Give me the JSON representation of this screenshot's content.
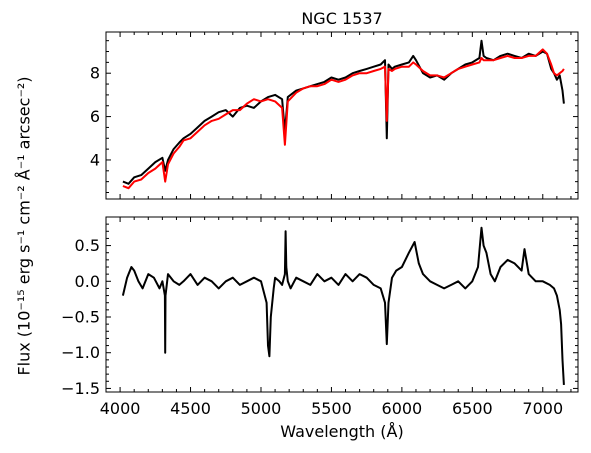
{
  "chart_data": [
    {
      "type": "line",
      "title": "NGC 1537",
      "xlabel": "",
      "ylabel": "",
      "xlim": [
        3900,
        7250
      ],
      "ylim": [
        2.2,
        9.9
      ],
      "xticks": [
        4000,
        4500,
        5000,
        5500,
        6000,
        6500,
        7000
      ],
      "yticks": [
        4,
        6,
        8
      ],
      "ytick_labels": [
        "4",
        "6",
        "8"
      ],
      "grid": false,
      "series": [
        {
          "color": "#000000",
          "x": [
            4020,
            4060,
            4100,
            4150,
            4200,
            4250,
            4300,
            4320,
            4340,
            4380,
            4420,
            4450,
            4500,
            4550,
            4600,
            4650,
            4700,
            4750,
            4800,
            4850,
            4900,
            4950,
            5000,
            5050,
            5100,
            5150,
            5170,
            5190,
            5250,
            5300,
            5350,
            5400,
            5450,
            5500,
            5550,
            5600,
            5650,
            5700,
            5750,
            5800,
            5850,
            5880,
            5893,
            5905,
            5930,
            5950,
            6000,
            6050,
            6080,
            6100,
            6150,
            6200,
            6250,
            6300,
            6350,
            6400,
            6450,
            6500,
            6550,
            6565,
            6580,
            6600,
            6650,
            6700,
            6750,
            6800,
            6850,
            6900,
            6950,
            7000,
            7030,
            7060,
            7080,
            7100,
            7120,
            7140,
            7150
          ],
          "y": [
            3.0,
            2.9,
            3.2,
            3.3,
            3.6,
            3.9,
            4.1,
            3.5,
            4.0,
            4.5,
            4.8,
            5.0,
            5.2,
            5.5,
            5.8,
            6.0,
            6.2,
            6.3,
            6.0,
            6.4,
            6.5,
            6.4,
            6.7,
            6.9,
            7.0,
            6.8,
            5.3,
            6.9,
            7.2,
            7.3,
            7.4,
            7.5,
            7.6,
            7.8,
            7.7,
            7.8,
            8.0,
            8.1,
            8.2,
            8.3,
            8.4,
            8.6,
            5.0,
            8.4,
            8.2,
            8.3,
            8.4,
            8.5,
            8.8,
            8.6,
            8.0,
            7.8,
            7.9,
            7.7,
            8.0,
            8.2,
            8.4,
            8.5,
            8.7,
            9.5,
            8.8,
            8.7,
            8.6,
            8.8,
            8.9,
            8.8,
            8.7,
            8.9,
            8.8,
            9.0,
            8.9,
            8.2,
            8.0,
            7.7,
            7.9,
            7.2,
            6.6
          ]
        },
        {
          "color": "#ff0000",
          "x": [
            4020,
            4060,
            4100,
            4150,
            4200,
            4250,
            4300,
            4320,
            4340,
            4380,
            4420,
            4450,
            4500,
            4550,
            4600,
            4650,
            4700,
            4750,
            4800,
            4850,
            4900,
            4950,
            5000,
            5050,
            5100,
            5150,
            5170,
            5190,
            5250,
            5300,
            5350,
            5400,
            5450,
            5500,
            5550,
            5600,
            5650,
            5700,
            5750,
            5800,
            5850,
            5880,
            5893,
            5905,
            5930,
            5950,
            6000,
            6050,
            6080,
            6100,
            6150,
            6200,
            6250,
            6300,
            6350,
            6400,
            6450,
            6500,
            6550,
            6565,
            6580,
            6600,
            6650,
            6700,
            6750,
            6800,
            6850,
            6900,
            6950,
            7000,
            7030,
            7060,
            7080,
            7100,
            7120,
            7140,
            7150
          ],
          "y": [
            2.8,
            2.7,
            3.0,
            3.1,
            3.4,
            3.6,
            3.9,
            3.0,
            3.8,
            4.3,
            4.6,
            4.9,
            5.0,
            5.3,
            5.6,
            5.8,
            5.9,
            6.1,
            6.3,
            6.3,
            6.6,
            6.8,
            6.7,
            6.8,
            6.7,
            6.4,
            4.7,
            6.7,
            7.1,
            7.3,
            7.4,
            7.4,
            7.5,
            7.7,
            7.6,
            7.7,
            7.9,
            8.0,
            8.0,
            8.1,
            8.2,
            8.3,
            5.8,
            8.2,
            8.1,
            8.2,
            8.3,
            8.3,
            8.5,
            8.4,
            8.1,
            7.9,
            7.9,
            7.8,
            8.0,
            8.2,
            8.3,
            8.4,
            8.5,
            8.7,
            8.6,
            8.6,
            8.6,
            8.7,
            8.8,
            8.7,
            8.7,
            8.8,
            8.8,
            9.1,
            8.9,
            8.4,
            8.0,
            7.9,
            8.0,
            8.1,
            8.2
          ]
        }
      ]
    },
    {
      "type": "line",
      "title": "",
      "xlabel": "Wavelength (Å)",
      "ylabel": "Flux (10⁻¹⁵ erg s⁻¹ cm⁻² Å⁻¹ arcsec⁻²)",
      "xlim": [
        3900,
        7250
      ],
      "ylim": [
        -1.55,
        0.9
      ],
      "xticks": [
        4000,
        4500,
        5000,
        5500,
        6000,
        6500,
        7000
      ],
      "xtick_labels": [
        "4000",
        "4500",
        "5000",
        "5500",
        "6000",
        "6500",
        "7000"
      ],
      "yticks": [
        0.5,
        0.0,
        -0.5,
        -1.0,
        -1.5
      ],
      "ytick_labels": [
        "0.5",
        "0.0",
        "−0.5",
        "−1.0",
        "−1.5"
      ],
      "grid": false,
      "series": [
        {
          "color": "#000000",
          "x": [
            4020,
            4050,
            4080,
            4100,
            4130,
            4160,
            4200,
            4240,
            4280,
            4300,
            4318,
            4320,
            4322,
            4340,
            4380,
            4420,
            4450,
            4500,
            4550,
            4600,
            4650,
            4700,
            4750,
            4800,
            4850,
            4900,
            4950,
            5000,
            5040,
            5050,
            5060,
            5070,
            5090,
            5100,
            5130,
            5150,
            5170,
            5175,
            5180,
            5190,
            5210,
            5250,
            5300,
            5350,
            5400,
            5450,
            5500,
            5550,
            5600,
            5650,
            5700,
            5750,
            5800,
            5850,
            5880,
            5893,
            5905,
            5930,
            5960,
            6000,
            6050,
            6090,
            6120,
            6150,
            6200,
            6250,
            6300,
            6350,
            6400,
            6450,
            6500,
            6540,
            6565,
            6580,
            6600,
            6630,
            6660,
            6700,
            6750,
            6800,
            6850,
            6870,
            6900,
            6950,
            7000,
            7050,
            7080,
            7100,
            7120,
            7130,
            7140,
            7150
          ],
          "y": [
            -0.2,
            0.05,
            0.2,
            0.15,
            0.0,
            -0.1,
            0.1,
            0.05,
            -0.1,
            0.0,
            -0.2,
            -1.0,
            -0.2,
            0.1,
            0.0,
            -0.05,
            0.0,
            0.1,
            -0.05,
            0.05,
            0.0,
            -0.1,
            0.0,
            0.05,
            -0.05,
            0.0,
            0.05,
            0.0,
            -0.3,
            -0.9,
            -1.05,
            -0.5,
            -0.1,
            0.05,
            0.0,
            -0.05,
            0.1,
            0.7,
            0.2,
            0.0,
            -0.1,
            0.05,
            0.0,
            -0.05,
            0.1,
            0.0,
            0.05,
            -0.05,
            0.1,
            0.0,
            0.1,
            0.05,
            -0.05,
            -0.1,
            -0.3,
            -0.88,
            -0.3,
            0.05,
            0.15,
            0.2,
            0.4,
            0.55,
            0.25,
            0.1,
            0.0,
            -0.05,
            -0.1,
            -0.05,
            0.0,
            -0.1,
            0.0,
            0.2,
            0.75,
            0.5,
            0.4,
            0.1,
            0.0,
            0.2,
            0.3,
            0.25,
            0.15,
            0.45,
            0.1,
            0.0,
            0.0,
            -0.05,
            -0.1,
            -0.2,
            -0.4,
            -0.6,
            -1.1,
            -1.45
          ]
        }
      ]
    }
  ]
}
